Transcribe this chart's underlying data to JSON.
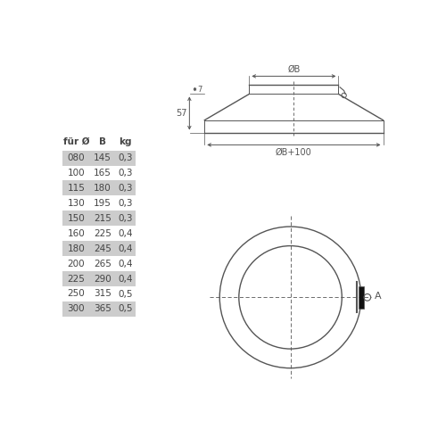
{
  "table_headers": [
    "für Ø",
    "B",
    "kg"
  ],
  "table_rows": [
    [
      "080",
      "145",
      "0,3"
    ],
    [
      "100",
      "165",
      "0,3"
    ],
    [
      "115",
      "180",
      "0,3"
    ],
    [
      "130",
      "195",
      "0,3"
    ],
    [
      "150",
      "215",
      "0,3"
    ],
    [
      "160",
      "225",
      "0,4"
    ],
    [
      "180",
      "245",
      "0,4"
    ],
    [
      "200",
      "265",
      "0,4"
    ],
    [
      "225",
      "290",
      "0,4"
    ],
    [
      "250",
      "315",
      "0,5"
    ],
    [
      "300",
      "365",
      "0,5"
    ]
  ],
  "shaded_rows": [
    0,
    2,
    4,
    6,
    8,
    10
  ],
  "bg_color": "#ffffff",
  "line_color": "#444444",
  "shade_color": "#cccccc",
  "text_color": "#444444",
  "header_color": "#444444",
  "dlc": "#555555"
}
